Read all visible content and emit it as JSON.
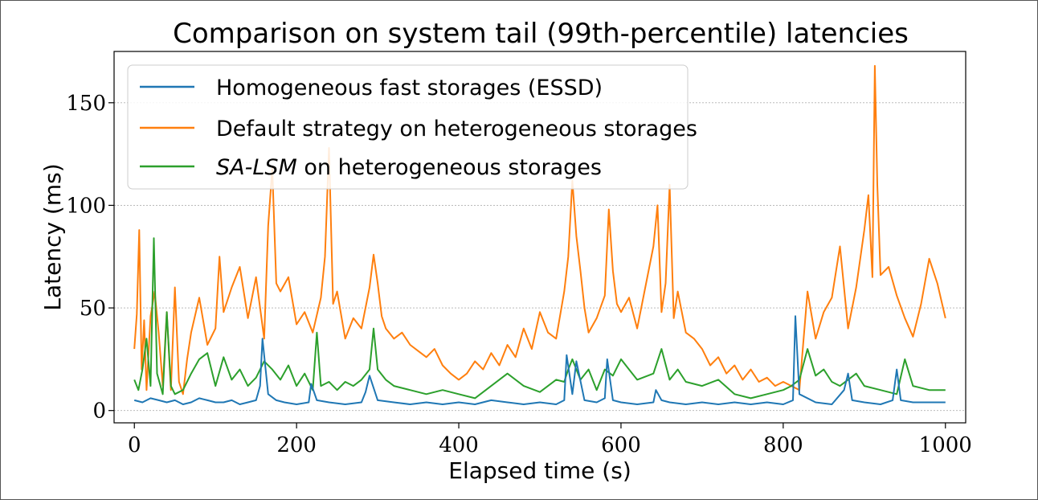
{
  "chart_data": {
    "type": "line",
    "title": "Comparison on system tail (99th-percentile) latencies",
    "xlabel": "Elapsed time (s)",
    "ylabel": "Latency (ms)",
    "xlim": [
      -25,
      1025
    ],
    "ylim": [
      -6,
      175
    ],
    "xticks": [
      0,
      200,
      400,
      600,
      800,
      1000
    ],
    "yticks": [
      0,
      50,
      100,
      150
    ],
    "grid": "horizontal-dotted",
    "legend_position": "upper-left",
    "series": [
      {
        "name": "Homogeneous fast storages (ESSD)",
        "color": "#1f77b4",
        "x": [
          0,
          10,
          20,
          30,
          40,
          50,
          60,
          70,
          80,
          90,
          100,
          110,
          120,
          130,
          140,
          150,
          155,
          158,
          165,
          175,
          185,
          200,
          215,
          218,
          225,
          240,
          260,
          280,
          285,
          290,
          300,
          320,
          340,
          360,
          380,
          400,
          420,
          440,
          460,
          480,
          500,
          520,
          530,
          533,
          540,
          545,
          555,
          570,
          580,
          583,
          590,
          600,
          620,
          640,
          643,
          650,
          660,
          680,
          700,
          720,
          740,
          760,
          780,
          800,
          812,
          815,
          820,
          840,
          860,
          875,
          880,
          885,
          900,
          920,
          935,
          940,
          945,
          960,
          980,
          1000
        ],
        "values": [
          5,
          4,
          6,
          5,
          4,
          5,
          3,
          4,
          6,
          5,
          4,
          4,
          5,
          3,
          4,
          5,
          12,
          35,
          8,
          5,
          4,
          3,
          4,
          13,
          5,
          4,
          3,
          4,
          9,
          17,
          5,
          4,
          3,
          4,
          3,
          4,
          3,
          5,
          4,
          3,
          4,
          3,
          5,
          27,
          8,
          24,
          5,
          4,
          6,
          25,
          5,
          4,
          3,
          4,
          10,
          5,
          4,
          3,
          4,
          3,
          4,
          3,
          4,
          3,
          5,
          46,
          8,
          4,
          3,
          10,
          18,
          5,
          4,
          3,
          5,
          20,
          5,
          4,
          4,
          4
        ]
      },
      {
        "name": "Default strategy on heterogeneous storages",
        "color": "#ff7f0e",
        "x": [
          0,
          3,
          6,
          9,
          12,
          15,
          20,
          25,
          30,
          35,
          40,
          45,
          50,
          55,
          60,
          65,
          70,
          80,
          90,
          100,
          105,
          110,
          120,
          130,
          140,
          150,
          160,
          165,
          170,
          175,
          180,
          190,
          200,
          210,
          220,
          230,
          235,
          240,
          245,
          250,
          260,
          270,
          280,
          290,
          295,
          300,
          305,
          310,
          320,
          330,
          340,
          350,
          360,
          370,
          380,
          390,
          400,
          410,
          420,
          430,
          440,
          450,
          460,
          470,
          480,
          490,
          500,
          510,
          520,
          530,
          535,
          540,
          545,
          550,
          555,
          560,
          570,
          580,
          585,
          590,
          595,
          600,
          610,
          620,
          630,
          640,
          645,
          650,
          655,
          660,
          665,
          670,
          680,
          690,
          700,
          710,
          720,
          730,
          740,
          750,
          760,
          770,
          780,
          790,
          800,
          810,
          820,
          830,
          840,
          850,
          860,
          870,
          880,
          890,
          900,
          905,
          910,
          913,
          916,
          920,
          930,
          940,
          950,
          960,
          970,
          980,
          990,
          1000
        ],
        "values": [
          30,
          47,
          88,
          20,
          44,
          10,
          46,
          58,
          38,
          12,
          48,
          10,
          60,
          14,
          8,
          25,
          38,
          55,
          32,
          40,
          75,
          48,
          60,
          70,
          45,
          65,
          35,
          90,
          118,
          62,
          58,
          65,
          42,
          48,
          38,
          55,
          75,
          128,
          52,
          58,
          35,
          45,
          40,
          60,
          76,
          62,
          46,
          40,
          35,
          38,
          32,
          29,
          26,
          30,
          22,
          18,
          15,
          18,
          24,
          20,
          28,
          22,
          32,
          26,
          40,
          30,
          48,
          38,
          35,
          58,
          75,
          112,
          85,
          68,
          50,
          38,
          45,
          56,
          98,
          68,
          52,
          48,
          55,
          40,
          60,
          80,
          100,
          48,
          62,
          110,
          45,
          58,
          38,
          35,
          30,
          22,
          26,
          18,
          22,
          15,
          20,
          14,
          16,
          12,
          14,
          12,
          10,
          58,
          35,
          48,
          55,
          80,
          40,
          60,
          88,
          105,
          65,
          168,
          110,
          66,
          70,
          56,
          45,
          36,
          52,
          74,
          62,
          45
        ]
      },
      {
        "name": "SA-LSM on heterogeneous storages",
        "color": "#2ca02c",
        "x": [
          0,
          5,
          10,
          15,
          20,
          24,
          28,
          35,
          40,
          45,
          50,
          60,
          70,
          80,
          90,
          100,
          110,
          120,
          130,
          140,
          150,
          160,
          170,
          180,
          190,
          200,
          210,
          220,
          225,
          230,
          240,
          250,
          260,
          270,
          280,
          290,
          295,
          300,
          310,
          320,
          340,
          360,
          380,
          400,
          420,
          440,
          460,
          480,
          500,
          520,
          530,
          535,
          540,
          550,
          560,
          570,
          580,
          590,
          600,
          610,
          620,
          640,
          650,
          660,
          670,
          680,
          700,
          720,
          740,
          760,
          780,
          800,
          810,
          820,
          830,
          840,
          850,
          860,
          870,
          880,
          890,
          900,
          920,
          940,
          950,
          960,
          980,
          1000
        ],
        "values": [
          15,
          10,
          20,
          35,
          12,
          84,
          18,
          8,
          48,
          12,
          8,
          10,
          18,
          25,
          28,
          12,
          26,
          15,
          20,
          12,
          16,
          24,
          20,
          15,
          22,
          12,
          18,
          10,
          38,
          12,
          14,
          10,
          14,
          12,
          15,
          20,
          40,
          20,
          15,
          12,
          10,
          8,
          10,
          8,
          6,
          12,
          18,
          12,
          9,
          15,
          14,
          20,
          25,
          15,
          20,
          10,
          20,
          17,
          25,
          20,
          15,
          18,
          30,
          15,
          20,
          14,
          12,
          15,
          8,
          6,
          8,
          10,
          12,
          15,
          30,
          17,
          20,
          14,
          12,
          15,
          18,
          12,
          10,
          8,
          25,
          12,
          10,
          10
        ]
      }
    ]
  }
}
